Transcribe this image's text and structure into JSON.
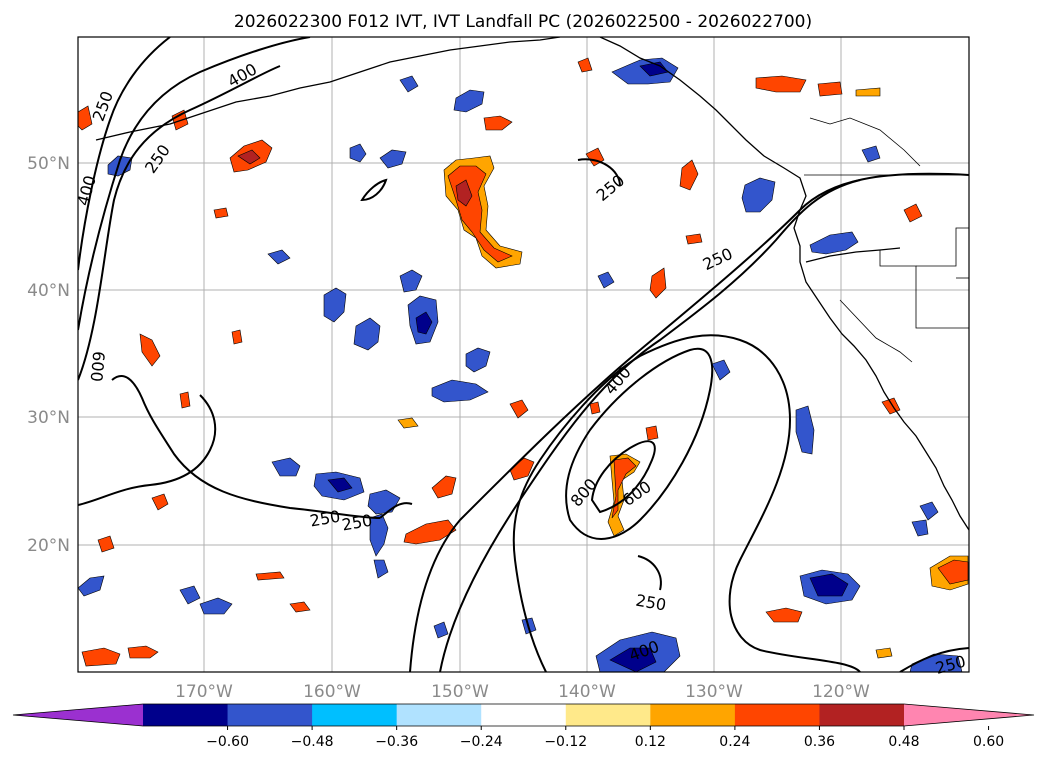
{
  "title": "2026022300 F012 IVT, IVT Landfall PC (2026022500 - 2026022700)",
  "lon_ticks": [
    "170°W",
    "160°W",
    "150°W",
    "140°W",
    "130°W",
    "120°W"
  ],
  "lat_ticks": [
    "50°N",
    "40°N",
    "30°N",
    "20°N"
  ],
  "map_extent": {
    "lon_min": -180,
    "lon_max": -110,
    "lat_min": 10,
    "lat_max": 60
  },
  "contour_labels": [
    "250",
    "400",
    "250",
    "400",
    "600",
    "250",
    "400",
    "800",
    "600",
    "250",
    "250",
    "250",
    "400",
    "250",
    "250"
  ],
  "colorbar": {
    "ticks": [
      "−0.60",
      "−0.48",
      "−0.36",
      "−0.24",
      "−0.12",
      "0.12",
      "0.24",
      "0.36",
      "0.48",
      "0.60"
    ],
    "colors": [
      "#9b30d0",
      "#00008b",
      "#3355cc",
      "#00bfff",
      "#b0e2ff",
      "#ffffff",
      "#ffe98a",
      "#ffa500",
      "#ff4500",
      "#b22222",
      "#ff85b0"
    ]
  },
  "colors": {
    "neg_strong": "#00008b",
    "neg_mid": "#3355cc",
    "neg_light": "#00bfff",
    "pos_light": "#ffe98a",
    "pos_mid": "#ffa500",
    "pos_strong": "#ff4500",
    "pos_dark": "#b22222"
  }
}
